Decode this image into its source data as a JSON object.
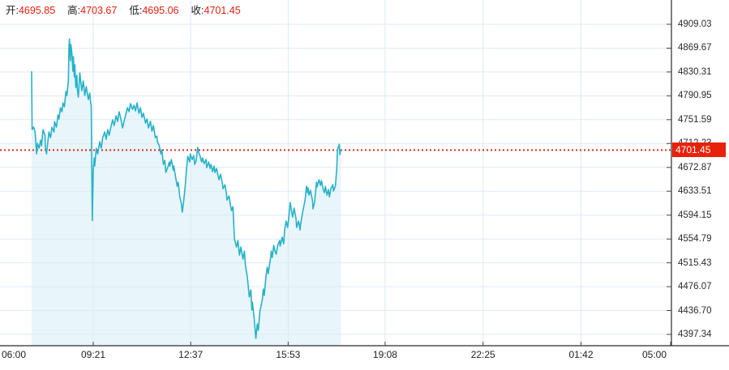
{
  "header": {
    "items": [
      {
        "label": "开:",
        "value": "4695.85"
      },
      {
        "label": "高:",
        "value": "4703.67"
      },
      {
        "label": "低:",
        "value": "4695.06"
      },
      {
        "label": "收:",
        "value": "4701.45"
      }
    ]
  },
  "current_price": {
    "label": "4701.45",
    "numeric": 4701.45
  },
  "colors": {
    "line": "#26b2c9",
    "fill": "#e8f5fa",
    "grid": "#dfeaf3",
    "red": "#e02b1b",
    "badge": "#e8210a",
    "axis": "#2a2a2a",
    "tick": "#444444"
  },
  "chart_data": {
    "type": "area",
    "title": "",
    "xlabel": "",
    "ylabel": "",
    "x_unit": "minutes_since_06:00",
    "x_axis": {
      "ticks": [
        "06:00",
        "09:21",
        "12:37",
        "15:53",
        "19:08",
        "22:25",
        "01:42",
        "05:00"
      ],
      "tick_minutes": [
        0,
        201,
        397,
        593,
        788,
        985,
        1182,
        1380
      ]
    },
    "y_axis": {
      "tick_labels": [
        "4909.03",
        "4869.67",
        "4830.31",
        "4790.95",
        "4751.59",
        "4712.23",
        "4672.87",
        "4633.51",
        "4594.15",
        "4554.79",
        "4515.43",
        "4476.07",
        "4436.70",
        "4397.34"
      ],
      "max": 4909.03,
      "min": 4397.34,
      "grid": true
    },
    "reference_line": {
      "value": 4701.45,
      "style": "red-dotted"
    },
    "series": [
      {
        "name": "price",
        "points": [
          [
            77,
            4831.5
          ],
          [
            78,
            4735.3
          ],
          [
            81,
            4739.3
          ],
          [
            84,
            4731.3
          ],
          [
            87,
            4695.2
          ],
          [
            89,
            4712.5
          ],
          [
            92,
            4704.5
          ],
          [
            95,
            4717.9
          ],
          [
            97,
            4708.6
          ],
          [
            100,
            4735.3
          ],
          [
            104,
            4725.9
          ],
          [
            105,
            4704.5
          ],
          [
            107,
            4695.2
          ],
          [
            110,
            4717.9
          ],
          [
            112,
            4731.3
          ],
          [
            115,
            4721.9
          ],
          [
            118,
            4739.3
          ],
          [
            122,
            4731.3
          ],
          [
            123,
            4748.7
          ],
          [
            127,
            4739.3
          ],
          [
            130,
            4759.4
          ],
          [
            132,
            4752.7
          ],
          [
            135,
            4771.4
          ],
          [
            138,
            4764.7
          ],
          [
            140,
            4779.4
          ],
          [
            143,
            4772.7
          ],
          [
            146,
            4798.1
          ],
          [
            148,
            4791.5
          ],
          [
            151,
            4815.5
          ],
          [
            152,
            4868.9
          ],
          [
            153,
            4885.0
          ],
          [
            155,
            4848.9
          ],
          [
            156,
            4875.6
          ],
          [
            158,
            4862.3
          ],
          [
            160,
            4831.5
          ],
          [
            161,
            4855.6
          ],
          [
            163,
            4822.2
          ],
          [
            164,
            4842.2
          ],
          [
            166,
            4804.8
          ],
          [
            168,
            4824.9
          ],
          [
            169,
            4802.2
          ],
          [
            171,
            4788.8
          ],
          [
            174,
            4828.9
          ],
          [
            178,
            4799.5
          ],
          [
            181,
            4815.5
          ],
          [
            184,
            4791.5
          ],
          [
            187,
            4806.1
          ],
          [
            191,
            4784.8
          ],
          [
            194,
            4795.5
          ],
          [
            196,
            4778.1
          ],
          [
            197,
            4775.4
          ],
          [
            199,
            4585.5
          ],
          [
            201,
            4668.4
          ],
          [
            203,
            4688.5
          ],
          [
            204,
            4675.1
          ],
          [
            207,
            4704.5
          ],
          [
            210,
            4695.2
          ],
          [
            214,
            4715.2
          ],
          [
            217,
            4704.5
          ],
          [
            220,
            4721.9
          ],
          [
            224,
            4731.3
          ],
          [
            227,
            4719.2
          ],
          [
            230,
            4735.3
          ],
          [
            233,
            4725.9
          ],
          [
            237,
            4742.0
          ],
          [
            240,
            4751.4
          ],
          [
            243,
            4742.0
          ],
          [
            247,
            4758.0
          ],
          [
            250,
            4748.7
          ],
          [
            253,
            4764.7
          ],
          [
            256,
            4755.4
          ],
          [
            260,
            4738.0
          ],
          [
            263,
            4748.7
          ],
          [
            266,
            4759.4
          ],
          [
            270,
            4771.4
          ],
          [
            273,
            4764.7
          ],
          [
            276,
            4778.1
          ],
          [
            280,
            4768.7
          ],
          [
            283,
            4775.4
          ],
          [
            286,
            4766.0
          ],
          [
            289,
            4779.4
          ],
          [
            293,
            4762.1
          ],
          [
            296,
            4771.4
          ],
          [
            299,
            4755.4
          ],
          [
            302,
            4762.1
          ],
          [
            306,
            4746.0
          ],
          [
            309,
            4752.7
          ],
          [
            312,
            4738.0
          ],
          [
            316,
            4748.7
          ],
          [
            319,
            4732.6
          ],
          [
            322,
            4742.0
          ],
          [
            326,
            4721.9
          ],
          [
            329,
            4724.6
          ],
          [
            330,
            4715.2
          ],
          [
            334,
            4708.6
          ],
          [
            337,
            4695.2
          ],
          [
            339,
            4701.9
          ],
          [
            342,
            4677.8
          ],
          [
            345,
            4684.5
          ],
          [
            347,
            4664.4
          ],
          [
            350,
            4671.1
          ],
          [
            354,
            4681.8
          ],
          [
            355,
            4675.1
          ],
          [
            358,
            4685.8
          ],
          [
            362,
            4668.4
          ],
          [
            363,
            4675.1
          ],
          [
            367,
            4655.1
          ],
          [
            370,
            4641.7
          ],
          [
            372,
            4648.4
          ],
          [
            375,
            4624.3
          ],
          [
            378,
            4614.9
          ],
          [
            380,
            4598.9
          ],
          [
            383,
            4618.9
          ],
          [
            386,
            4641.7
          ],
          [
            388,
            4664.4
          ],
          [
            391,
            4691.2
          ],
          [
            395,
            4681.8
          ],
          [
            396,
            4695.2
          ],
          [
            400,
            4685.8
          ],
          [
            403,
            4692.5
          ],
          [
            405,
            4677.8
          ],
          [
            408,
            4684.5
          ],
          [
            411,
            4705.9
          ],
          [
            413,
            4697.9
          ],
          [
            416,
            4691.2
          ],
          [
            419,
            4681.8
          ],
          [
            421,
            4688.5
          ],
          [
            424,
            4679.1
          ],
          [
            428,
            4685.8
          ],
          [
            429,
            4672.4
          ],
          [
            433,
            4681.8
          ],
          [
            436,
            4671.1
          ],
          [
            438,
            4677.8
          ],
          [
            441,
            4665.7
          ],
          [
            444,
            4675.1
          ],
          [
            446,
            4664.4
          ],
          [
            449,
            4671.1
          ],
          [
            452,
            4659.0
          ],
          [
            454,
            4652.4
          ],
          [
            457,
            4661.7
          ],
          [
            461,
            4645.7
          ],
          [
            462,
            4637.7
          ],
          [
            466,
            4644.3
          ],
          [
            469,
            4628.3
          ],
          [
            470,
            4618.9
          ],
          [
            474,
            4625.6
          ],
          [
            477,
            4611.0
          ],
          [
            479,
            4601.6
          ],
          [
            482,
            4608.2
          ],
          [
            485,
            4554.9
          ],
          [
            489,
            4541.6
          ],
          [
            492,
            4552.0
          ],
          [
            495,
            4528.2
          ],
          [
            498,
            4541.6
          ],
          [
            502,
            4521.5
          ],
          [
            505,
            4534.9
          ],
          [
            507,
            4512.2
          ],
          [
            511,
            4490.9
          ],
          [
            515,
            4458.8
          ],
          [
            518,
            4470.8
          ],
          [
            520,
            4437.4
          ],
          [
            521,
            4450.7
          ],
          [
            525,
            4421.3
          ],
          [
            526,
            4410.7
          ],
          [
            528,
            4390.6
          ],
          [
            531,
            4414.7
          ],
          [
            533,
            4404.0
          ],
          [
            536,
            4434.7
          ],
          [
            541,
            4454.8
          ],
          [
            543,
            4472.2
          ],
          [
            545,
            4461.5
          ],
          [
            548,
            4490.9
          ],
          [
            551,
            4508.2
          ],
          [
            553,
            4497.5
          ],
          [
            558,
            4525.6
          ],
          [
            559,
            4534.9
          ],
          [
            561,
            4524.2
          ],
          [
            564,
            4544.3
          ],
          [
            567,
            4533.6
          ],
          [
            569,
            4529.6
          ],
          [
            572,
            4544.3
          ],
          [
            576,
            4552.3
          ],
          [
            577,
            4542.9
          ],
          [
            581,
            4557.6
          ],
          [
            584,
            4546.9
          ],
          [
            586,
            4571.0
          ],
          [
            589,
            4584.4
          ],
          [
            592,
            4573.7
          ],
          [
            594,
            4588.4
          ],
          [
            597,
            4615.1
          ],
          [
            600,
            4600.4
          ],
          [
            602,
            4591.0
          ],
          [
            605,
            4605.7
          ],
          [
            609,
            4587.0
          ],
          [
            610,
            4573.7
          ],
          [
            614,
            4584.4
          ],
          [
            617,
            4569.7
          ],
          [
            618,
            4579.0
          ],
          [
            622,
            4597.7
          ],
          [
            625,
            4611.1
          ],
          [
            627,
            4619.1
          ],
          [
            630,
            4641.8
          ],
          [
            632,
            4631.1
          ],
          [
            633,
            4639.1
          ],
          [
            635,
            4627.1
          ],
          [
            638,
            4635.1
          ],
          [
            642,
            4617.7
          ],
          [
            643,
            4604.4
          ],
          [
            646,
            4615.1
          ],
          [
            650,
            4648.5
          ],
          [
            651,
            4640.5
          ],
          [
            655,
            4652.5
          ],
          [
            658,
            4643.1
          ],
          [
            660,
            4651.1
          ],
          [
            663,
            4637.8
          ],
          [
            666,
            4631.1
          ],
          [
            668,
            4641.8
          ],
          [
            671,
            4627.1
          ],
          [
            674,
            4636.4
          ],
          [
            676,
            4624.4
          ],
          [
            679,
            4637.8
          ],
          [
            683,
            4644.5
          ],
          [
            684,
            4633.8
          ],
          [
            688,
            4641.8
          ],
          [
            691,
            4672.5
          ],
          [
            692,
            4701.9
          ],
          [
            696,
            4711.2
          ],
          [
            697,
            4693.9
          ],
          [
            699,
            4703.2
          ]
        ]
      }
    ],
    "legend": false
  }
}
